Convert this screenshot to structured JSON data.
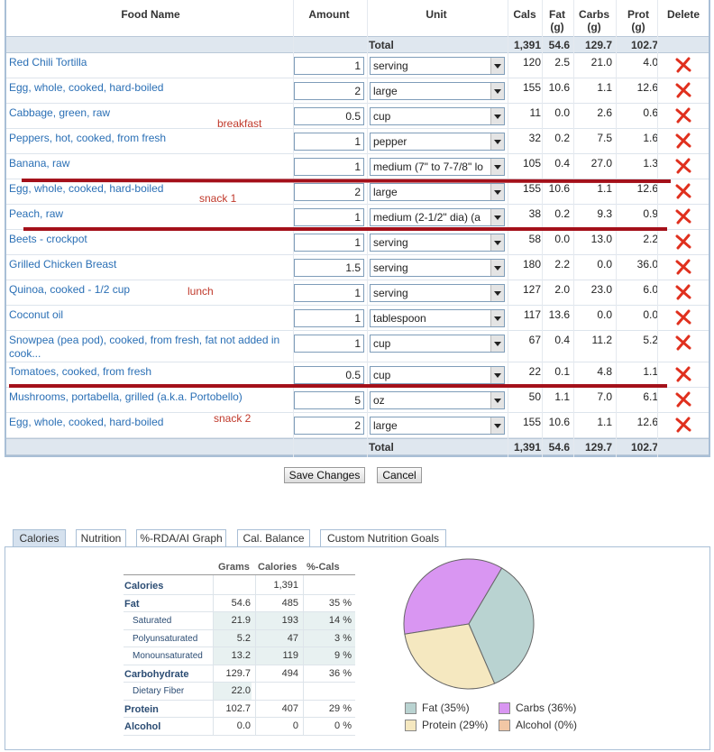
{
  "table": {
    "headers": {
      "food": "Food Name",
      "amount": "Amount",
      "unit": "Unit",
      "cals": "Cals",
      "fat": "Fat\n(g)",
      "carbs": "Carbs\n(g)",
      "prot": "Prot\n(g)",
      "delete": "Delete"
    },
    "total_label": "Total",
    "totals": {
      "cals": "1,391",
      "fat": "54.6",
      "carbs": "129.7",
      "prot": "102.7"
    },
    "rows": [
      {
        "name": "Red Chili Tortilla",
        "amount": "1",
        "unit": "serving",
        "cals": "120",
        "fat": "2.5",
        "carbs": "21.0",
        "prot": "4.0"
      },
      {
        "name": "Egg, whole, cooked, hard-boiled",
        "amount": "2",
        "unit": "large",
        "cals": "155",
        "fat": "10.6",
        "carbs": "1.1",
        "prot": "12.6"
      },
      {
        "name": "Cabbage, green, raw",
        "amount": "0.5",
        "unit": "cup",
        "cals": "11",
        "fat": "0.0",
        "carbs": "2.6",
        "prot": "0.6"
      },
      {
        "name": "Peppers, hot, cooked, from fresh",
        "amount": "1",
        "unit": "pepper",
        "cals": "32",
        "fat": "0.2",
        "carbs": "7.5",
        "prot": "1.6"
      },
      {
        "name": "Banana, raw",
        "amount": "1",
        "unit": "medium (7\" to 7-7/8\" lo",
        "cals": "105",
        "fat": "0.4",
        "carbs": "27.0",
        "prot": "1.3"
      },
      {
        "name": "Egg, whole, cooked, hard-boiled",
        "amount": "2",
        "unit": "large",
        "cals": "155",
        "fat": "10.6",
        "carbs": "1.1",
        "prot": "12.6"
      },
      {
        "name": "Peach, raw",
        "amount": "1",
        "unit": "medium (2-1/2\" dia) (a",
        "cals": "38",
        "fat": "0.2",
        "carbs": "9.3",
        "prot": "0.9"
      },
      {
        "name": "Beets - crockpot",
        "amount": "1",
        "unit": "serving",
        "cals": "58",
        "fat": "0.0",
        "carbs": "13.0",
        "prot": "2.2"
      },
      {
        "name": "Grilled Chicken Breast",
        "amount": "1.5",
        "unit": "serving",
        "cals": "180",
        "fat": "2.2",
        "carbs": "0.0",
        "prot": "36.0"
      },
      {
        "name": "Quinoa, cooked - 1/2 cup",
        "amount": "1",
        "unit": "serving",
        "cals": "127",
        "fat": "2.0",
        "carbs": "23.0",
        "prot": "6.0"
      },
      {
        "name": "Coconut oil",
        "amount": "1",
        "unit": "tablespoon",
        "cals": "117",
        "fat": "13.6",
        "carbs": "0.0",
        "prot": "0.0"
      },
      {
        "name": "Snowpea (pea pod), cooked, from fresh, fat not added in cook...",
        "amount": "1",
        "unit": "cup",
        "cals": "67",
        "fat": "0.4",
        "carbs": "11.2",
        "prot": "5.2"
      },
      {
        "name": "Tomatoes, cooked, from fresh",
        "amount": "0.5",
        "unit": "cup",
        "cals": "22",
        "fat": "0.1",
        "carbs": "4.8",
        "prot": "1.1"
      },
      {
        "name": "Mushrooms, portabella, grilled (a.k.a. Portobello)",
        "amount": "5",
        "unit": "oz",
        "cals": "50",
        "fat": "1.1",
        "carbs": "7.0",
        "prot": "6.1"
      },
      {
        "name": "Egg, whole, cooked, hard-boiled",
        "amount": "2",
        "unit": "large",
        "cals": "155",
        "fat": "10.6",
        "carbs": "1.1",
        "prot": "12.6"
      }
    ],
    "annotations": {
      "breakfast": "breakfast",
      "snack1": "snack 1",
      "lunch": "lunch",
      "snack2": "snack 2"
    }
  },
  "buttons": {
    "save": "Save Changes",
    "cancel": "Cancel"
  },
  "tabs": [
    "Calories",
    "Nutrition",
    "%-RDA/AI Graph",
    "Cal. Balance",
    "Custom Nutrition Goals"
  ],
  "nutrition": {
    "headers": {
      "grams": "Grams",
      "calories": "Calories",
      "pct": "%-Cals"
    },
    "rows": [
      {
        "label": "Calories",
        "grams": "",
        "cals": "1,391",
        "pct": ""
      },
      {
        "label": "Fat",
        "grams": "54.6",
        "cals": "485",
        "pct": "35 %"
      },
      {
        "label": "Saturated",
        "grams": "21.9",
        "cals": "193",
        "pct": "14 %"
      },
      {
        "label": "Polyunsaturated",
        "grams": "5.2",
        "cals": "47",
        "pct": "3 %"
      },
      {
        "label": "Monounsaturated",
        "grams": "13.2",
        "cals": "119",
        "pct": "9 %"
      },
      {
        "label": "Carbohydrate",
        "grams": "129.7",
        "cals": "494",
        "pct": "36 %"
      },
      {
        "label": "Dietary Fiber",
        "grams": "22.0",
        "cals": "",
        "pct": ""
      },
      {
        "label": "Protein",
        "grams": "102.7",
        "cals": "407",
        "pct": "29 %"
      },
      {
        "label": "Alcohol",
        "grams": "0.0",
        "cals": "0",
        "pct": "0 %"
      }
    ]
  },
  "chart_data": {
    "type": "pie",
    "categories": [
      "Fat",
      "Carbs",
      "Protein",
      "Alcohol"
    ],
    "values": [
      35,
      36,
      29,
      0
    ],
    "colors": [
      "#b9d3d1",
      "#d996f2",
      "#f5e8c0",
      "#f2c7a5"
    ],
    "legend": [
      "Fat (35%)",
      "Carbs (36%)",
      "Protein (29%)",
      "Alcohol (0%)"
    ]
  },
  "icons": {
    "delete": "delete-x-icon",
    "dropdown": "dropdown-arrow-icon"
  }
}
